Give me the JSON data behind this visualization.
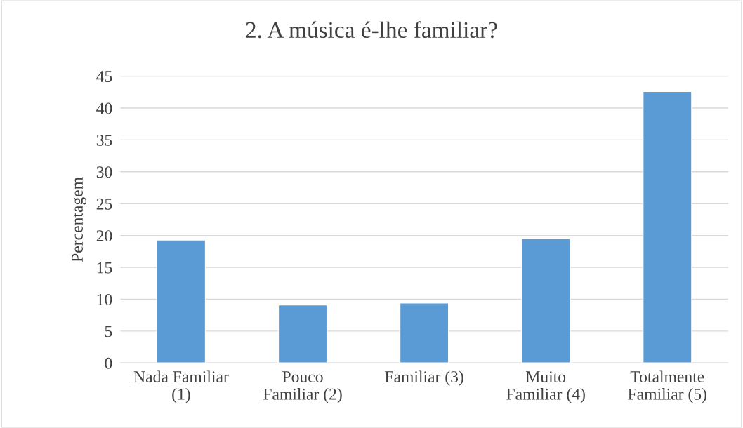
{
  "chart_data": {
    "type": "bar",
    "title": "2. A música é-lhe familiar?",
    "ylabel": "Percentagem",
    "categories": [
      "Nada Familiar\n(1)",
      "Pouco\nFamiliar (2)",
      "Familiar (3)",
      "Muito\nFamiliar (4)",
      "Totalmente\nFamiliar (5)"
    ],
    "values": [
      19.3,
      9.1,
      9.4,
      19.5,
      42.6
    ],
    "color": "#5b9bd5",
    "ylim": [
      0,
      45
    ],
    "yticks": [
      0,
      5,
      10,
      15,
      20,
      25,
      30,
      35,
      40,
      45
    ],
    "grid": "y",
    "legend": false
  }
}
